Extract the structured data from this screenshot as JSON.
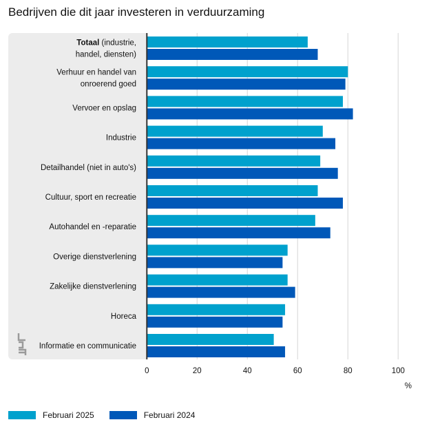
{
  "title": "Bedrijven die dit jaar investeren in verduurzaming",
  "chart_data": {
    "type": "bar",
    "orientation": "horizontal",
    "categories": [
      [
        "Totaal",
        "(industrie,",
        "handel, diensten)"
      ],
      [
        "Verhuur en handel van",
        "onroerend goed"
      ],
      [
        "Vervoer en opslag"
      ],
      [
        "Industrie"
      ],
      [
        "Detailhandel (niet in auto's)"
      ],
      [
        "Cultuur, sport en recreatie"
      ],
      [
        "Autohandel en -reparatie"
      ],
      [
        "Overige dienstverlening"
      ],
      [
        "Zakelijke dienstverlening"
      ],
      [
        "Horeca"
      ],
      [
        "Informatie en communicatie"
      ]
    ],
    "series": [
      {
        "name": "Februari 2025",
        "color": "#00a1cd",
        "values": [
          64,
          80,
          78,
          70,
          69,
          68,
          67,
          56,
          56,
          55,
          50.5
        ]
      },
      {
        "name": "Februari 2024",
        "color": "#0058b8",
        "values": [
          68,
          79,
          82,
          75,
          76,
          78,
          73,
          54,
          59,
          54,
          55
        ]
      }
    ],
    "xlim": [
      0,
      100
    ],
    "xticks": [
      "0",
      "20",
      "40",
      "60",
      "80",
      "100"
    ],
    "xunit": "%",
    "grid": true,
    "legend": "bottom-left"
  }
}
